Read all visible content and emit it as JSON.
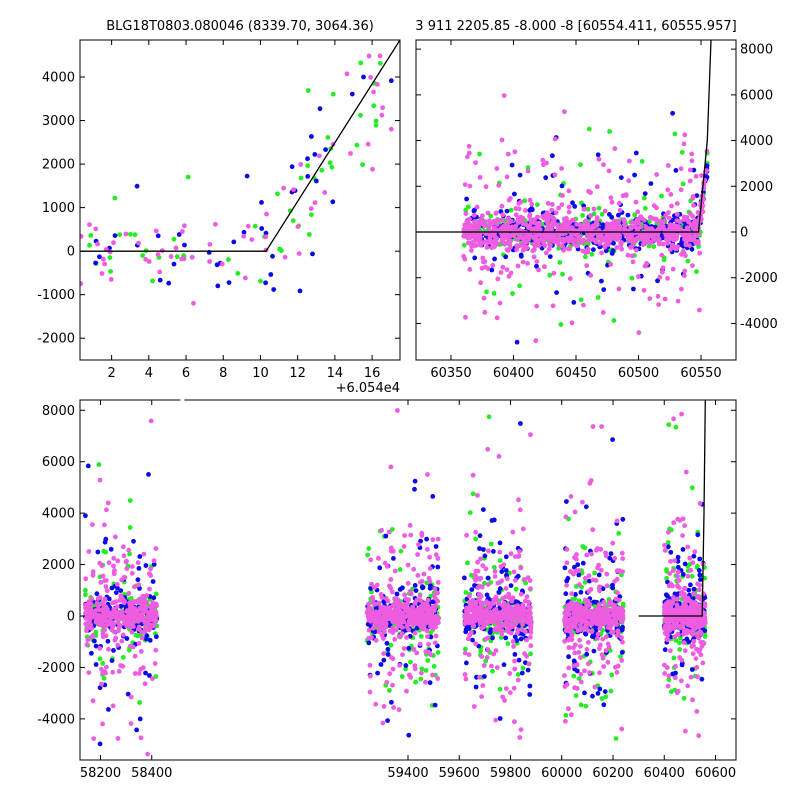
{
  "colors": {
    "green": "#22ee22",
    "blue": "#0a0ae8",
    "magenta": "#ee5ce0",
    "model": "#000000"
  },
  "chart_data": [
    {
      "type": "scatter",
      "title": "BLG18T0803.080046 (8339.70, 3064.36)",
      "x_offset_label": "+6.054e4",
      "xlim": [
        0.3,
        17.5
      ],
      "ylim": [
        -2500,
        4850
      ],
      "x_ticks": [
        2,
        4,
        6,
        8,
        10,
        12,
        14,
        16
      ],
      "y_ticks": [
        -2000,
        -1000,
        0,
        1000,
        2000,
        3000,
        4000
      ],
      "y_tick_side": "left",
      "model": {
        "x": [
          0.3,
          10.3,
          17.5
        ],
        "y": [
          0,
          0,
          4850
        ]
      },
      "scatter": {
        "mode": "rise",
        "counts": {
          "green": 50,
          "blue": 45,
          "magenta": 65
        }
      }
    },
    {
      "type": "scatter",
      "title": "3 911 2205.85 -8.000 -8 [60554.411, 60555.957]",
      "xlim": [
        60322,
        60578
      ],
      "ylim": [
        -5600,
        8400
      ],
      "x_ticks": [
        60350,
        60400,
        60450,
        60500,
        60550
      ],
      "y_ticks": [
        -4000,
        -2000,
        0,
        2000,
        4000,
        6000,
        8000
      ],
      "y_tick_side": "right",
      "model": {
        "x": [
          60322,
          60548,
          60555,
          60558
        ],
        "y": [
          0,
          0,
          4000,
          8400
        ]
      },
      "scatter": {
        "mode": "band",
        "x_range": [
          60360,
          60555
        ],
        "counts": {
          "green": 320,
          "blue": 420,
          "magenta": 900
        }
      }
    },
    {
      "type": "scatter",
      "xlim": [
        58120,
        60680
      ],
      "ylim": [
        -5600,
        8400
      ],
      "x_ticks": [
        58200,
        58400,
        59400,
        59600,
        59800,
        60000,
        60200,
        60400,
        60600
      ],
      "y_ticks": [
        -4000,
        -2000,
        0,
        2000,
        4000,
        6000,
        8000
      ],
      "y_tick_side": "left",
      "model": {
        "x": [
          60300,
          60548,
          60555,
          60560
        ],
        "y": [
          0,
          0,
          4000,
          8400
        ]
      },
      "seasons": [
        {
          "x_range": [
            58140,
            58420
          ]
        },
        {
          "x_range": [
            59240,
            59520
          ]
        },
        {
          "x_range": [
            59620,
            59880
          ]
        },
        {
          "x_range": [
            60010,
            60240
          ]
        },
        {
          "x_range": [
            60400,
            60560
          ]
        }
      ],
      "scatter": {
        "mode": "seasons",
        "counts_per_season": {
          "green": 160,
          "blue": 170,
          "magenta": 380
        }
      }
    }
  ]
}
